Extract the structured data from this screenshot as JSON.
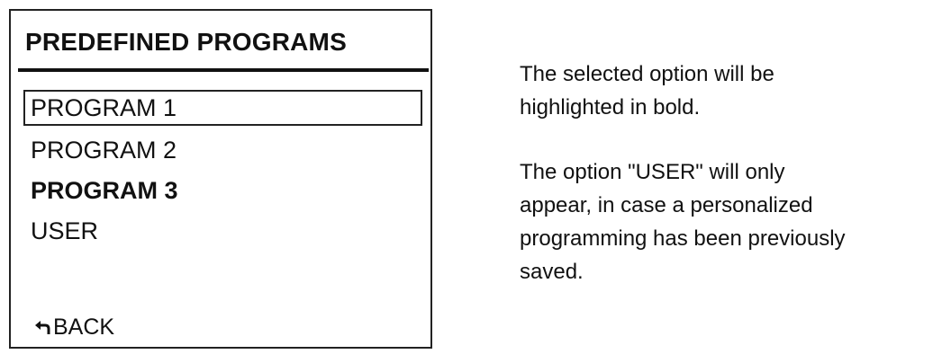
{
  "screen": {
    "title": "PREDEFINED PROGRAMS",
    "items": [
      {
        "label": "PROGRAM 1",
        "state": "cursor"
      },
      {
        "label": "PROGRAM 2",
        "state": "normal"
      },
      {
        "label": "PROGRAM 3",
        "state": "selected-bold"
      },
      {
        "label": "USER",
        "state": "normal"
      }
    ],
    "back": {
      "icon": "return-arrow-icon",
      "label": "BACK"
    }
  },
  "notes": {
    "note1": [
      "The selected option will be",
      "highlighted in bold."
    ],
    "note2": [
      "The option \"USER\" will only",
      "appear, in case a personalized",
      "programming has been previously",
      "saved."
    ]
  }
}
